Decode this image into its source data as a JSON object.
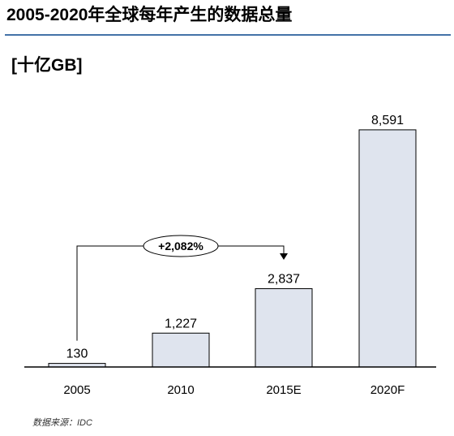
{
  "title": "2005-2020年全球每年产生的数据总量",
  "unit": "[十亿GB]",
  "source": "数据来源：IDC",
  "chart_data": {
    "type": "bar",
    "categories": [
      "2005",
      "2010",
      "2015E",
      "2020F"
    ],
    "values": [
      130,
      1227,
      2837,
      8591
    ],
    "value_labels": [
      "130",
      "1,227",
      "2,837",
      "8,591"
    ],
    "ylim": [
      0,
      9000
    ],
    "grid": false,
    "annotation": {
      "text": "+2,082%",
      "from": "2005",
      "to": "2015E"
    },
    "bar_fill": "#dfe4ee",
    "bar_stroke": "#000000"
  }
}
